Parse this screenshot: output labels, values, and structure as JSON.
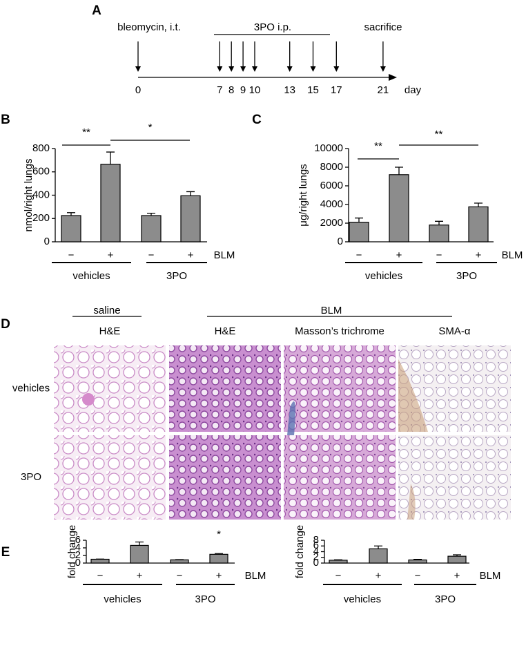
{
  "panel_labels": [
    "A",
    "B",
    "C",
    "D",
    "E"
  ],
  "timeline": {
    "start_label": "bleomycin, i.t.",
    "treatment_label": "3PO i.p.",
    "end_label": "sacrifice",
    "unit": "day",
    "days": [
      0,
      7,
      8,
      9,
      10,
      13,
      15,
      17,
      21
    ]
  },
  "chart_data": [
    {
      "type": "bar",
      "y_label": "nmol/right lungs",
      "categories": [
        "−",
        "+",
        "−",
        "+"
      ],
      "category_axis_label": "BLM",
      "groups": [
        "vehicles",
        "3PO"
      ],
      "values": [
        225,
        665,
        225,
        395
      ],
      "errors": [
        25,
        105,
        20,
        35
      ],
      "ylim": [
        0,
        800
      ],
      "yticks": [
        0,
        200,
        400,
        600,
        800
      ],
      "color": "#8c8c8c",
      "annotations": [
        "**",
        "*"
      ]
    },
    {
      "type": "bar",
      "y_label": "μg/right lungs",
      "categories": [
        "−",
        "+",
        "−",
        "+"
      ],
      "category_axis_label": "BLM",
      "groups": [
        "vehicles",
        "3PO"
      ],
      "values": [
        2100,
        7200,
        1800,
        3750
      ],
      "errors": [
        450,
        800,
        400,
        400
      ],
      "ylim": [
        0,
        10000
      ],
      "yticks": [
        0,
        2000,
        4000,
        6000,
        8000,
        10000
      ],
      "color": "#8c8c8c",
      "annotations": [
        "**",
        "**"
      ]
    },
    {
      "type": "bar",
      "y_label": "fold change",
      "categories": [
        "−",
        "+",
        "−",
        "+"
      ],
      "category_axis_label": "BLM",
      "groups": [
        "vehicles",
        "3PO"
      ],
      "values": [
        1.0,
        4.65,
        0.85,
        2.3
      ],
      "errors": [
        0.05,
        0.9,
        0.05,
        0.2
      ],
      "ylim": [
        0,
        6
      ],
      "yticks": [
        0,
        2,
        4,
        6
      ],
      "color": "#8c8c8c",
      "annotations": [
        "*"
      ]
    },
    {
      "type": "bar",
      "y_label": "fold change",
      "categories": [
        "−",
        "+",
        "−",
        "+"
      ],
      "category_axis_label": "BLM",
      "groups": [
        "vehicles",
        "3PO"
      ],
      "values": [
        1.0,
        5.0,
        1.1,
        2.4
      ],
      "errors": [
        0.15,
        1.0,
        0.2,
        0.5
      ],
      "ylim": [
        0,
        8
      ],
      "yticks": [
        0,
        2,
        4,
        6,
        8
      ],
      "color": "#8c8c8c",
      "annotations": []
    }
  ],
  "histology": {
    "group_labels": [
      "saline",
      "BLM"
    ],
    "columns": [
      "H&E",
      "H&E",
      "Masson’s trichrome",
      "SMA-α"
    ],
    "rows": [
      "vehicles",
      "3PO"
    ]
  }
}
